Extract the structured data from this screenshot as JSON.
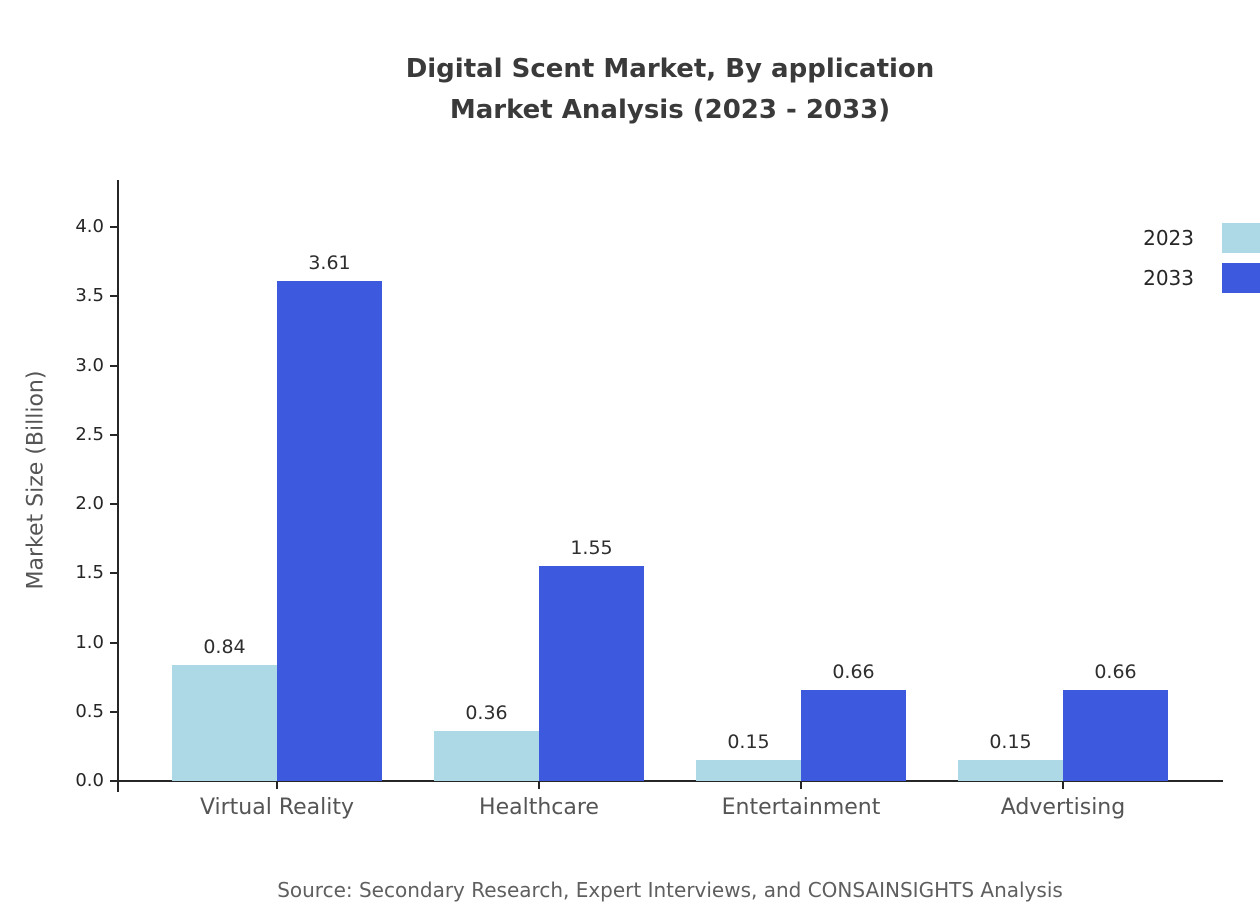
{
  "chart_data": {
    "type": "bar",
    "title": "Digital Scent Market, By application",
    "subtitle": "Market Analysis (2023 - 2033)",
    "ylabel": "Market Size (Billion)",
    "xlabel": "",
    "categories": [
      "Virtual Reality",
      "Healthcare",
      "Entertainment",
      "Advertising"
    ],
    "series": [
      {
        "name": "2023",
        "color": "#ADD8E6",
        "values": [
          0.84,
          0.36,
          0.15,
          0.15
        ]
      },
      {
        "name": "2033",
        "color": "#3D5ADE",
        "values": [
          3.61,
          1.55,
          0.66,
          0.66
        ]
      }
    ],
    "ylim": [
      0,
      4.34
    ],
    "yticks": [
      0.0,
      0.5,
      1.0,
      1.5,
      2.0,
      2.5,
      3.0,
      3.5,
      4.0
    ],
    "grid": false,
    "legend_position": "top-right",
    "source": "Source: Secondary Research, Expert Interviews, and CONSAINSIGHTS Analysis"
  }
}
